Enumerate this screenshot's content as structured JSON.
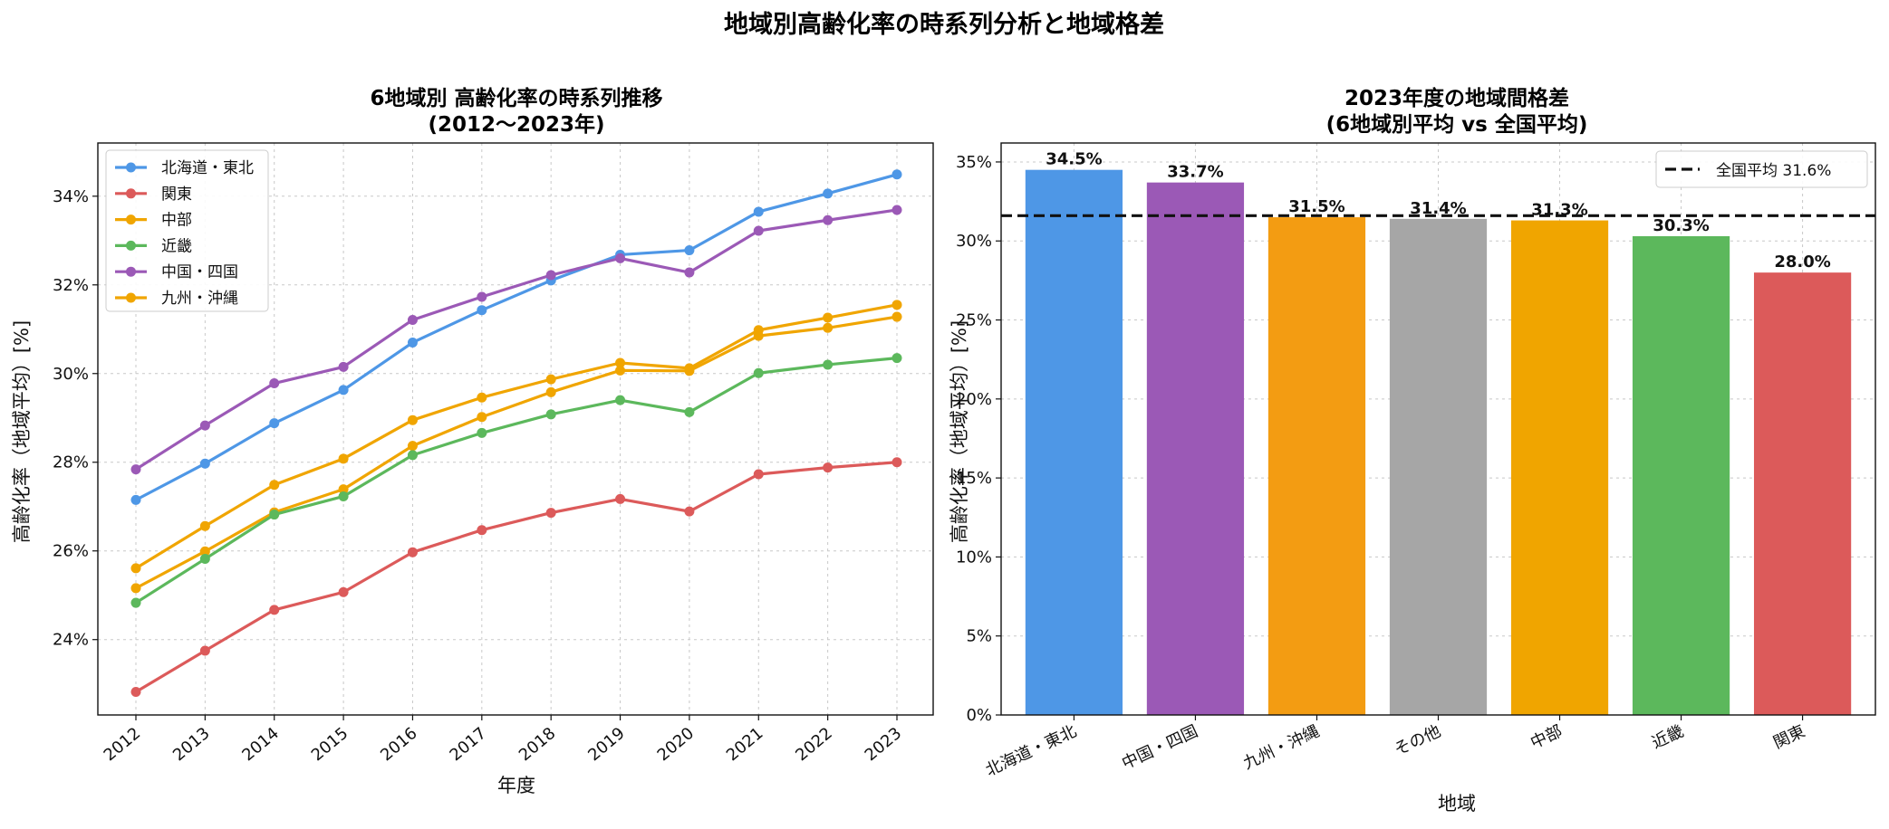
{
  "figure": {
    "suptitle": "地域別高齢化率の時系列分析と地域格差"
  },
  "chart_data": [
    {
      "type": "line",
      "title_line1": "6地域別 高齢化率の時系列推移",
      "title_line2": "(2012〜2023年)",
      "xlabel": "年度",
      "ylabel": "高齢化率（地域平均）[%]",
      "x": [
        "2012",
        "2013",
        "2014",
        "2015",
        "2016",
        "2017",
        "2018",
        "2019",
        "2020",
        "2021",
        "2022",
        "2023"
      ],
      "ylim": [
        22.3,
        35.2
      ],
      "yticks": [
        24,
        26,
        28,
        30,
        32,
        34
      ],
      "ytick_suffix": "%",
      "grid": true,
      "legend_position": "upper-left",
      "series": [
        {
          "name": "北海道・東北",
          "color": "#4e97e6",
          "values": [
            27.15,
            27.97,
            28.88,
            29.63,
            30.7,
            31.43,
            32.1,
            32.68,
            32.78,
            33.65,
            34.06,
            34.49
          ]
        },
        {
          "name": "関東",
          "color": "#dc5a5a",
          "values": [
            22.82,
            23.75,
            24.67,
            25.07,
            25.97,
            26.47,
            26.86,
            27.17,
            26.89,
            27.73,
            27.88,
            28.0
          ]
        },
        {
          "name": "中部",
          "color": "#f0a500",
          "values": [
            25.16,
            25.99,
            26.87,
            27.39,
            28.37,
            29.02,
            29.58,
            30.07,
            30.06,
            30.85,
            31.03,
            31.28
          ]
        },
        {
          "name": "近畿",
          "color": "#5cb85c",
          "values": [
            24.83,
            25.82,
            26.82,
            27.23,
            28.16,
            28.66,
            29.08,
            29.4,
            29.13,
            30.01,
            30.2,
            30.35
          ]
        },
        {
          "name": "中国・四国",
          "color": "#9b59b6",
          "values": [
            27.84,
            28.83,
            29.78,
            30.15,
            31.21,
            31.73,
            32.22,
            32.6,
            32.28,
            33.22,
            33.46,
            33.69
          ]
        },
        {
          "name": "九州・沖縄",
          "color": "#f0a500",
          "values": [
            25.61,
            26.56,
            27.49,
            28.08,
            28.95,
            29.46,
            29.87,
            30.24,
            30.12,
            30.98,
            31.26,
            31.55
          ]
        }
      ]
    },
    {
      "type": "bar",
      "title_line1": "2023年度の地域間格差",
      "title_line2": "(6地域別平均 vs 全国平均)",
      "xlabel": "地域",
      "ylabel": "高齢化率（地域平均）[%]",
      "categories": [
        "北海道・東北",
        "中国・四国",
        "九州・沖縄",
        "その他",
        "中部",
        "近畿",
        "関東"
      ],
      "values": [
        34.5,
        33.7,
        31.5,
        31.4,
        31.3,
        30.3,
        28.0
      ],
      "value_labels": [
        "34.5%",
        "33.7%",
        "31.5%",
        "31.4%",
        "31.3%",
        "30.3%",
        "28.0%"
      ],
      "colors": [
        "#4e97e6",
        "#9b59b6",
        "#f39c12",
        "#a6a6a6",
        "#f0a500",
        "#5cb85c",
        "#dc5a5a"
      ],
      "ylim": [
        0,
        36.2
      ],
      "yticks": [
        0,
        5,
        10,
        15,
        20,
        25,
        30,
        35
      ],
      "ytick_suffix": "%",
      "grid": true,
      "reference_line": {
        "label": "全国平均 31.6%",
        "value": 31.6,
        "color": "#111111"
      },
      "legend_position": "upper-right"
    }
  ]
}
